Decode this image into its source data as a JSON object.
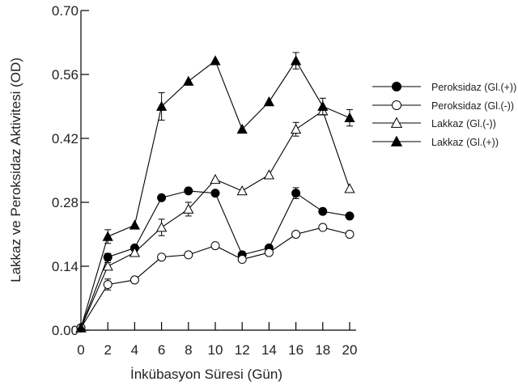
{
  "chart_data": {
    "type": "line",
    "title": "",
    "xlabel": "İnkübasyon Süresi (Gün)",
    "ylabel": "Lakkaz ve Peroksidaz Aktivitesi (OD)",
    "xlim": [
      0,
      20
    ],
    "ylim": [
      0,
      0.7
    ],
    "x_ticks": [
      0,
      2,
      4,
      6,
      8,
      10,
      12,
      14,
      16,
      18,
      20
    ],
    "y_ticks": [
      0.0,
      0.14,
      0.28,
      0.42,
      0.56,
      0.7
    ],
    "y_tick_labels": [
      "0.00",
      "0.14",
      "0.28",
      "0.42",
      "0.56",
      "0.70"
    ],
    "grid": false,
    "legend_position": "right",
    "line_color": "#000000",
    "x": [
      0,
      2,
      4,
      6,
      8,
      10,
      12,
      14,
      16,
      18,
      20
    ],
    "series": [
      {
        "name": "Peroksidaz (Gl.(+))",
        "marker": "filled-circle",
        "values": [
          0.005,
          0.16,
          0.18,
          0.29,
          0.305,
          0.3,
          0.165,
          0.18,
          0.3,
          0.26,
          0.25
        ],
        "errors": [
          0,
          0.008,
          0,
          0,
          0,
          0,
          0,
          0,
          0.012,
          0,
          0
        ]
      },
      {
        "name": "Peroksidaz (Gl.(-))",
        "marker": "open-circle",
        "values": [
          0.005,
          0.1,
          0.11,
          0.16,
          0.165,
          0.185,
          0.155,
          0.17,
          0.21,
          0.225,
          0.21
        ],
        "errors": [
          0,
          0.012,
          0,
          0,
          0,
          0,
          0,
          0,
          0,
          0,
          0
        ]
      },
      {
        "name": "Lakkaz (Gl.(-))",
        "marker": "open-triangle",
        "values": [
          0.005,
          0.14,
          0.17,
          0.225,
          0.265,
          0.33,
          0.305,
          0.34,
          0.44,
          0.48,
          0.31
        ],
        "errors": [
          0,
          0.008,
          0,
          0.018,
          0.015,
          0,
          0,
          0,
          0.015,
          0,
          0
        ]
      },
      {
        "name": "Lakkaz (Gl.(+))",
        "marker": "filled-triangle",
        "values": [
          0.005,
          0.205,
          0.23,
          0.49,
          0.545,
          0.59,
          0.44,
          0.5,
          0.59,
          0.49,
          0.465
        ],
        "errors": [
          0,
          0.015,
          0,
          0.03,
          0,
          0,
          0,
          0,
          0.018,
          0.018,
          0.018
        ]
      }
    ]
  }
}
